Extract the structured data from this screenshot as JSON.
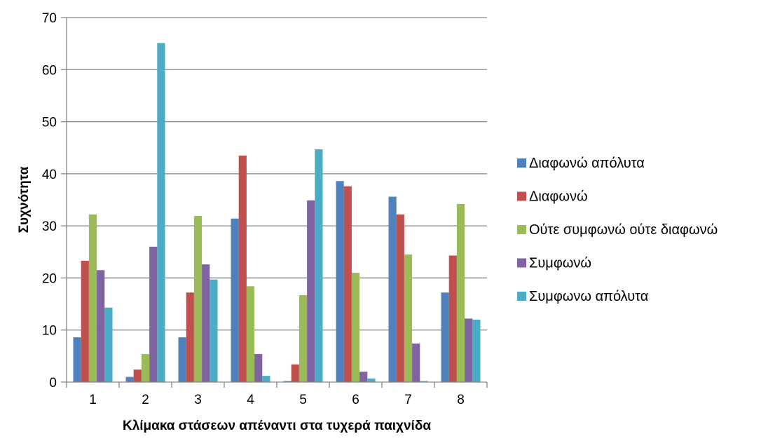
{
  "chart_data": {
    "type": "bar",
    "title": "",
    "xlabel": "Κλίμακα στάσεων απέναντι στα τυχερά παιχνίδα",
    "ylabel": "Συχνότητα",
    "ylim": [
      0,
      70
    ],
    "yticks": [
      0,
      10,
      20,
      30,
      40,
      50,
      60,
      70
    ],
    "grid": true,
    "legend_position": "right",
    "categories": [
      "1",
      "2",
      "3",
      "4",
      "5",
      "6",
      "7",
      "8"
    ],
    "series": [
      {
        "name": "Διαφωνώ απόλυτα",
        "color": "#4F81BD",
        "values": [
          8.6,
          1.0,
          8.6,
          31.4,
          0.2,
          38.6,
          35.6,
          17.2
        ]
      },
      {
        "name": "Διαφωνώ",
        "color": "#C0504D",
        "values": [
          23.3,
          2.4,
          17.2,
          43.5,
          3.4,
          37.6,
          32.2,
          24.3
        ]
      },
      {
        "name": "Ούτε συμφωνώ ούτε διαφωνώ",
        "color": "#9BBB59",
        "values": [
          32.2,
          5.4,
          31.9,
          18.4,
          16.7,
          21.0,
          24.5,
          34.2
        ]
      },
      {
        "name": "Συμφωνώ",
        "color": "#8064A2",
        "values": [
          21.5,
          26.0,
          22.6,
          5.4,
          34.9,
          2.0,
          7.4,
          12.2
        ]
      },
      {
        "name": "Συμφωνω απόλυτα",
        "color": "#4BACC6",
        "values": [
          14.3,
          65.1,
          19.7,
          1.2,
          44.7,
          0.7,
          0.2,
          12.0
        ]
      }
    ]
  }
}
